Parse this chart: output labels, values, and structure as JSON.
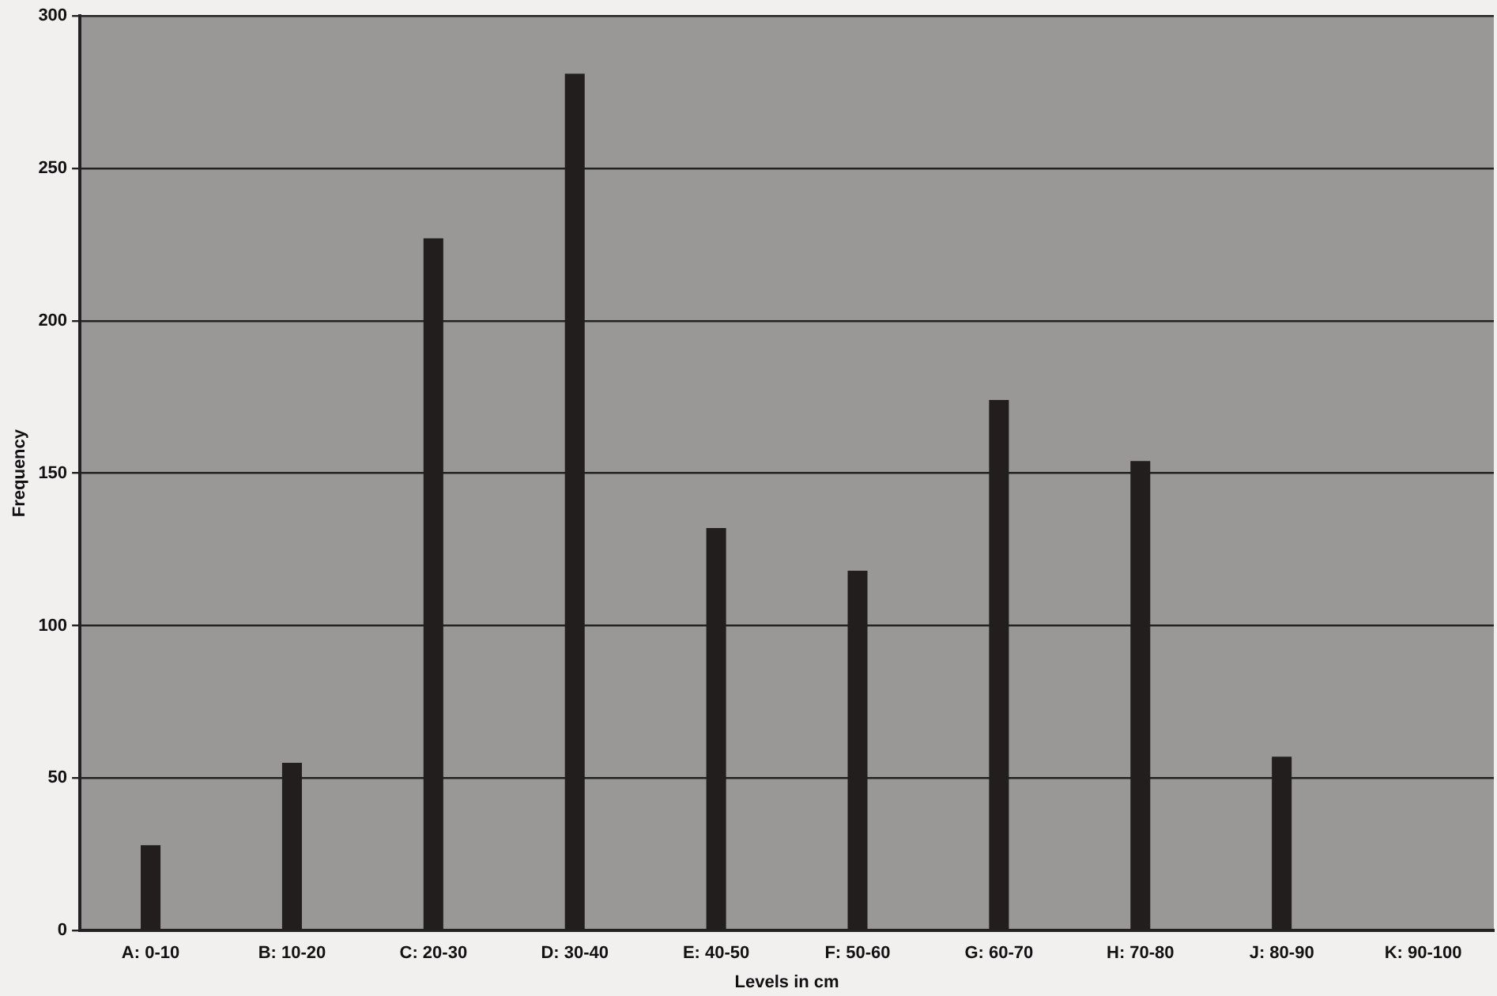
{
  "chart_data": {
    "type": "bar",
    "xlabel": "Levels in cm",
    "ylabel": "Frequency",
    "categories": [
      "A: 0-10",
      "B: 10-20",
      "C: 20-30",
      "D: 30-40",
      "E: 40-50",
      "F: 50-60",
      "G: 60-70",
      "H: 70-80",
      "J: 80-90",
      "K: 90-100"
    ],
    "values": [
      28,
      55,
      227,
      281,
      132,
      118,
      174,
      154,
      57,
      null
    ],
    "color": "#221e1e",
    "ylim": [
      0,
      300
    ],
    "yticks": [
      0,
      50,
      100,
      150,
      200,
      250,
      300
    ],
    "grid": "y",
    "legend": false
  }
}
